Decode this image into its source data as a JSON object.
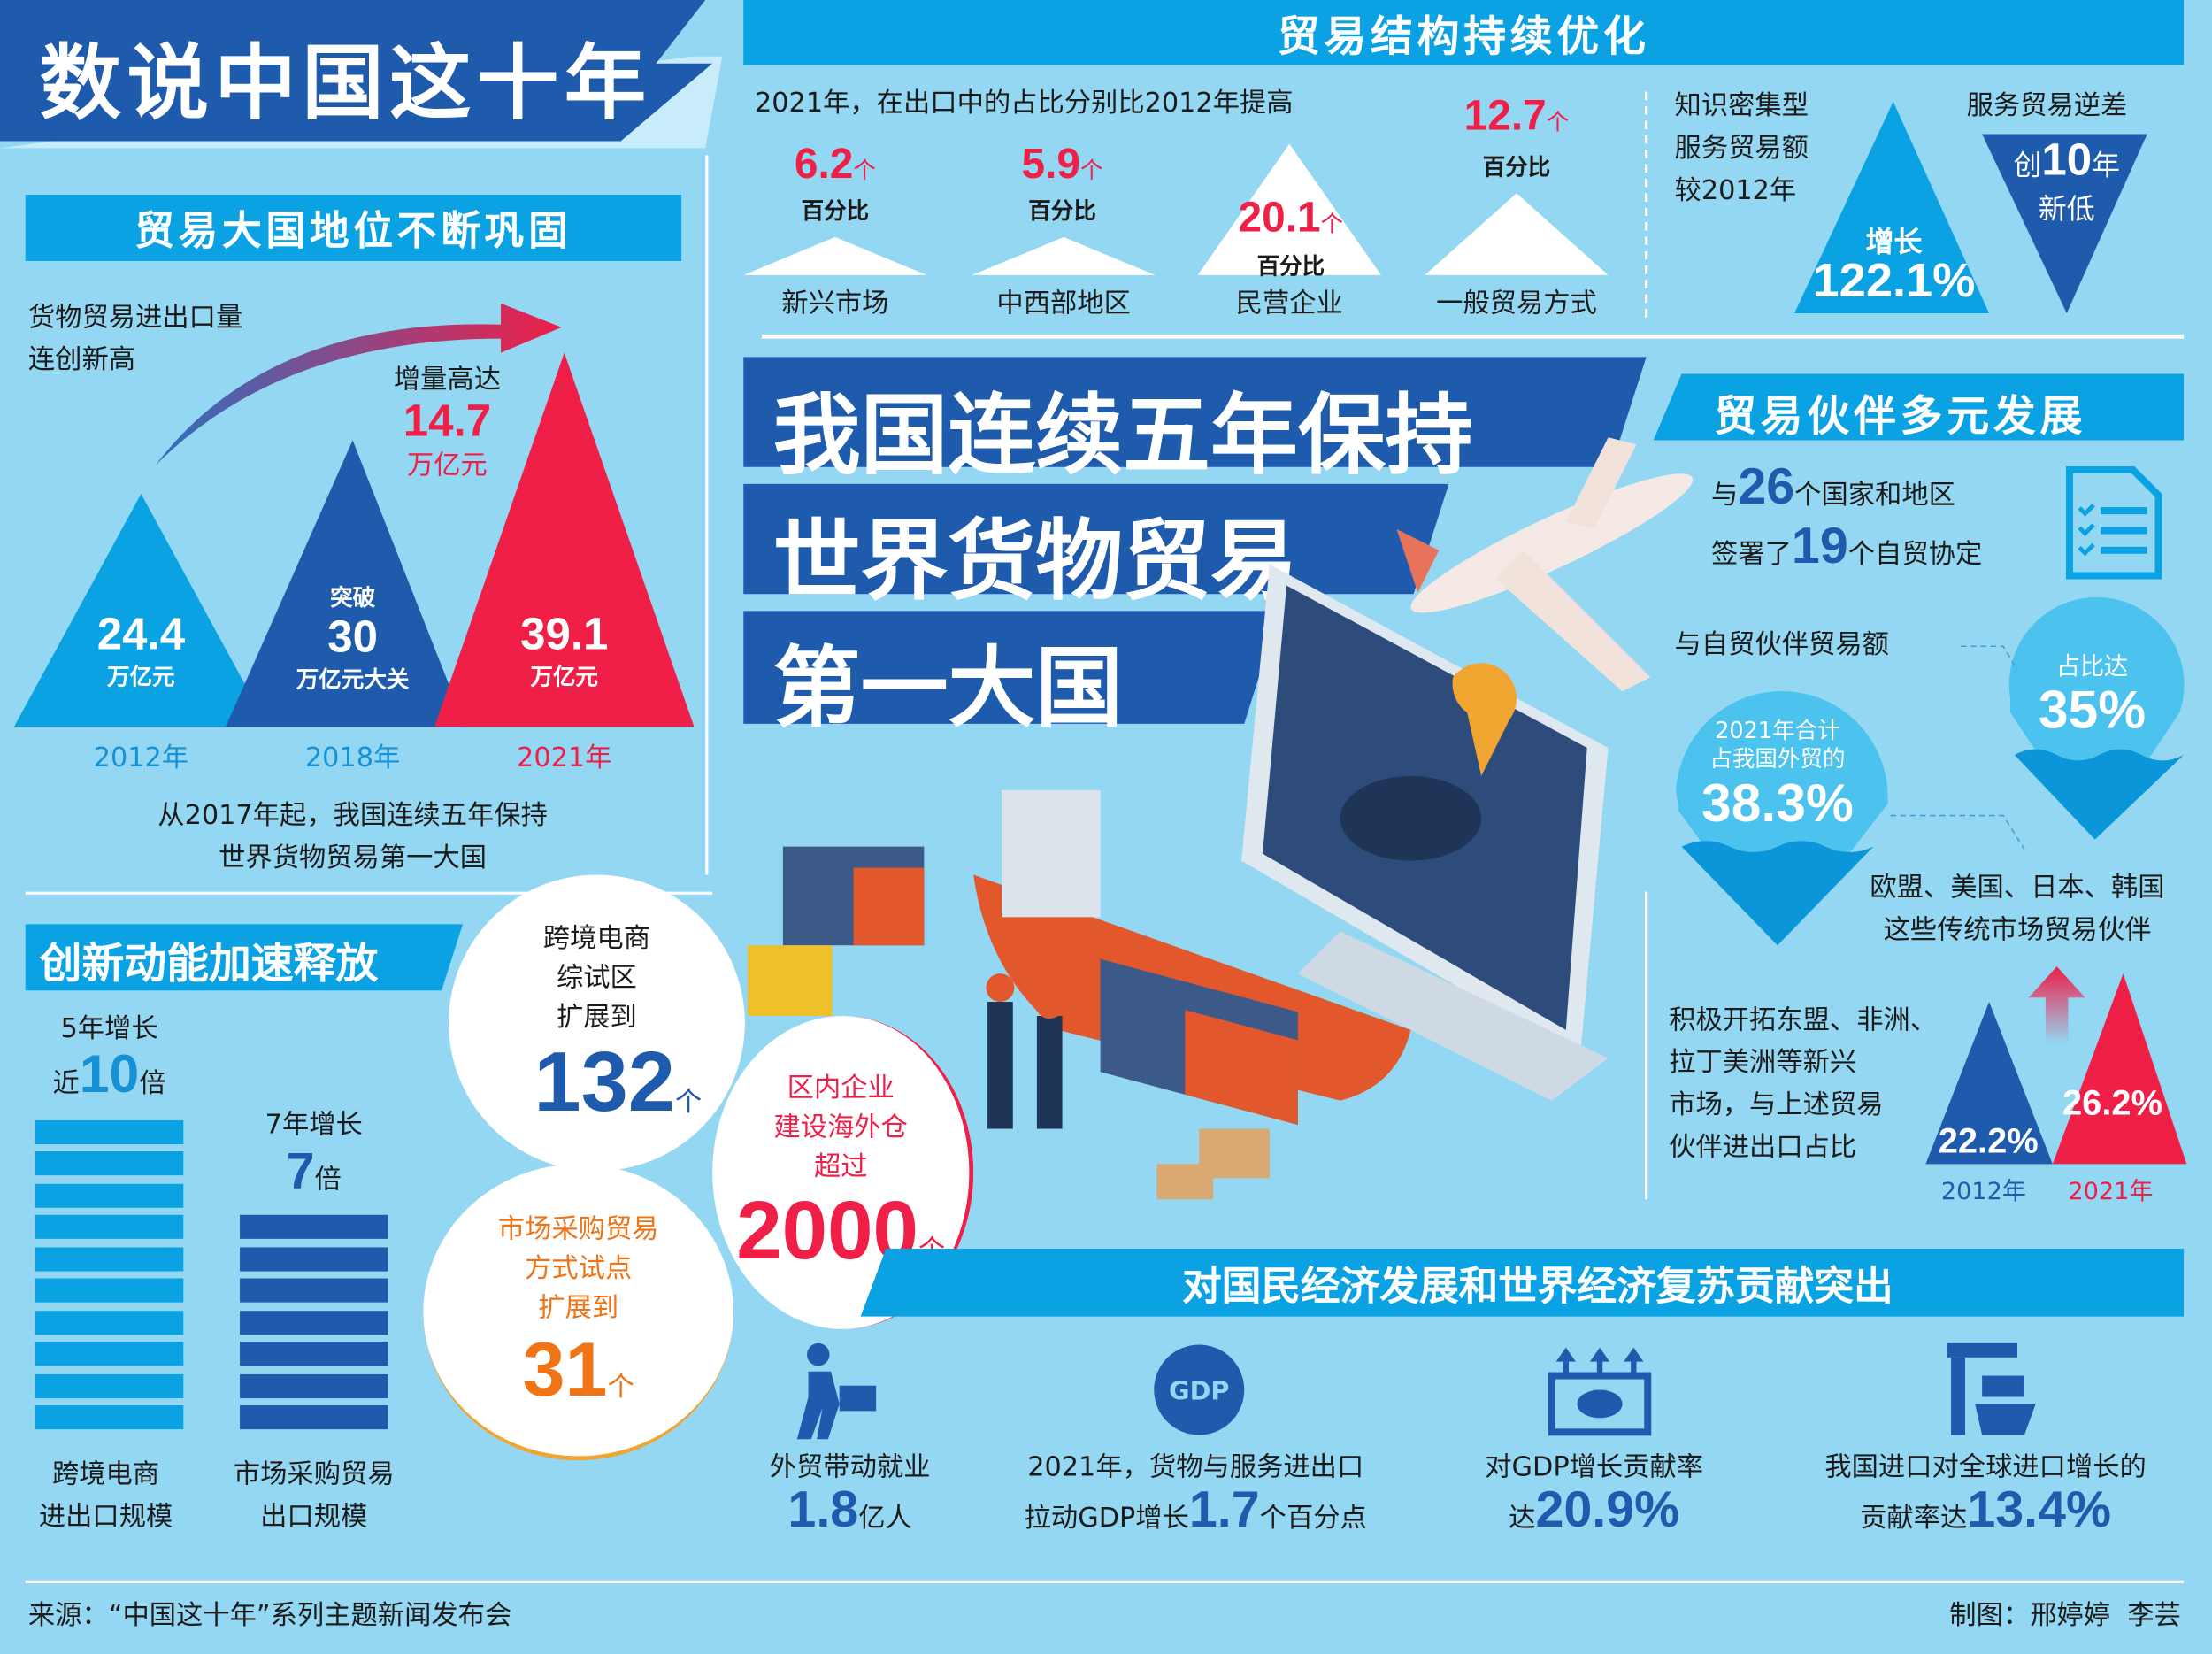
{
  "title": "数说中国这十年",
  "colors": {
    "background": "#93d7f2",
    "dark_blue": "#1e5bad",
    "bright_blue": "#0aa2e2",
    "red": "#ef1f48",
    "orange": "#f07415"
  },
  "structure": {
    "header": "贸易结构持续优化",
    "subtitle": "2021年，在出口中的占比分别比2012年提高",
    "items": [
      {
        "label": "新兴市场",
        "value": "6.2",
        "unit": "个",
        "unit2": "百分比"
      },
      {
        "label": "中西部地区",
        "value": "5.9",
        "unit": "个",
        "unit2": "百分比"
      },
      {
        "label": "民营企业",
        "value": "20.1",
        "unit": "个",
        "unit2": "百分比"
      },
      {
        "label": "一般贸易方式",
        "value": "12.7",
        "unit": "个",
        "unit2": "百分比"
      }
    ],
    "knowledge": {
      "lines": [
        "知识密集型",
        "服务贸易额",
        "较2012年"
      ],
      "label": "增长",
      "value": "122.1%"
    },
    "deficit": {
      "title": "服务贸易逆差",
      "pre": "创",
      "value": "10",
      "post": "年",
      "line2": "新低"
    }
  },
  "status": {
    "header": "贸易大国地位不断巩固",
    "intro": [
      "货物贸易进出口量",
      "连创新高"
    ],
    "increase_label": "增量高达",
    "increase_value": "14.7",
    "increase_unit": "万亿元",
    "bars": [
      {
        "year": "2012年",
        "value": "24.4",
        "unit": "万亿元",
        "pre": ""
      },
      {
        "year": "2018年",
        "value": "30",
        "unit": "万亿元大关",
        "pre": "突破"
      },
      {
        "year": "2021年",
        "value": "39.1",
        "unit": "万亿元",
        "pre": ""
      }
    ],
    "summary": [
      "从2017年起，我国连续五年保持",
      "世界货物贸易第一大国"
    ]
  },
  "headline": [
    "我国连续五年保持",
    "世界货物贸易",
    "第一大国"
  ],
  "innovation": {
    "header": "创新动能加速释放",
    "a": {
      "l1": "5年增长",
      "pre": "近",
      "value": "10",
      "unit": "倍",
      "label": [
        "跨境电商",
        "进出口规模"
      ]
    },
    "b": {
      "l1": "7年增长",
      "value": "7",
      "unit": "倍",
      "label": [
        "市场采购贸易",
        "出口规模"
      ]
    },
    "c1": {
      "lines": [
        "跨境电商",
        "综试区",
        "扩展到"
      ],
      "value": "132",
      "unit": "个"
    },
    "c2": {
      "lines": [
        "区内企业",
        "建设海外仓",
        "超过"
      ],
      "value": "2000",
      "unit": "个"
    },
    "c3": {
      "lines": [
        "市场采购贸易",
        "方式试点",
        "扩展到"
      ],
      "value": "31",
      "unit": "个"
    }
  },
  "partners": {
    "header": "贸易伙伴多元发展",
    "l1": {
      "pre": "与",
      "value": "26",
      "post": "个国家和地区"
    },
    "l2": {
      "pre": "签署了",
      "value": "19",
      "post": "个自贸协定"
    },
    "fta_label": "与自贸伙伴贸易额",
    "drop1": {
      "label": "占比达",
      "value": "35%"
    },
    "drop2": {
      "lines": [
        "2021年合计",
        "占我国外贸的"
      ],
      "value": "38.3%"
    },
    "traditional": [
      "欧盟、美国、日本、韩国",
      "这些传统市场贸易伙伴"
    ],
    "emerging": [
      "积极开拓东盟、非洲、",
      "拉丁美洲等新兴",
      "市场，与上述贸易",
      "伙伴进出口占比"
    ],
    "tri": [
      {
        "year": "2012年",
        "value": "22.2%"
      },
      {
        "year": "2021年",
        "value": "26.2%"
      }
    ]
  },
  "contribution": {
    "header": "对国民经济发展和世界经济复苏贡献突出",
    "items": [
      {
        "icon": "worker-icon",
        "l1": "外贸带动就业",
        "pre": "",
        "value": "1.8",
        "post": "亿人"
      },
      {
        "icon": "gdp-globe-icon",
        "l1": "2021年，货物与服务进出口",
        "pre": "拉动GDP增长",
        "value": "1.7",
        "post": "个百分点"
      },
      {
        "icon": "gdp-chart-icon",
        "l1": "对GDP增长贡献率",
        "pre": "达",
        "value": "20.9%",
        "post": ""
      },
      {
        "icon": "port-crane-icon",
        "l1": "我国进口对全球进口增长的",
        "pre": "贡献率达",
        "value": "13.4%",
        "post": ""
      }
    ]
  },
  "footer": {
    "source": "来源：“中国这十年”系列主题新闻发布会",
    "credit": "制图：邢婷婷  李芸"
  }
}
